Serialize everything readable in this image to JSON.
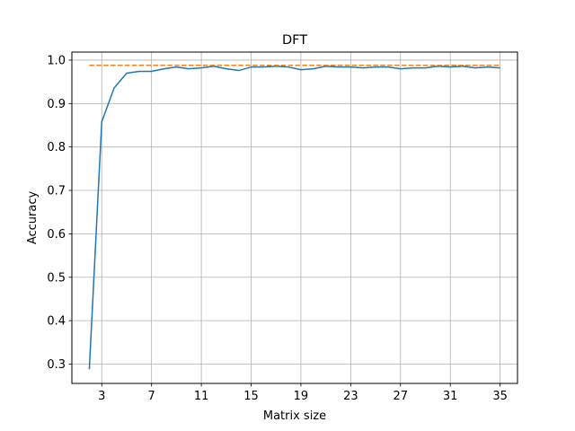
{
  "chart_data": {
    "type": "line",
    "title": "DFT",
    "xlabel": "Matrix size",
    "ylabel": "Accuracy",
    "xlim": [
      0.6,
      36.4
    ],
    "ylim": [
      0.2555,
      1.0185
    ],
    "xticks": [
      3,
      7,
      11,
      15,
      19,
      23,
      27,
      31,
      35
    ],
    "yticks": [
      0.3,
      0.4,
      0.5,
      0.6,
      0.7,
      0.8,
      0.9,
      1.0
    ],
    "ytick_labels": [
      "0.3",
      "0.4",
      "0.5",
      "0.6",
      "0.7",
      "0.8",
      "0.9",
      "1.0"
    ],
    "grid": true,
    "series": [
      {
        "color": "#1f77b4",
        "style": "solid",
        "x": [
          2,
          3,
          4,
          5,
          6,
          7,
          8,
          9,
          10,
          11,
          12,
          13,
          14,
          15,
          16,
          17,
          18,
          19,
          20,
          21,
          22,
          23,
          24,
          25,
          26,
          27,
          28,
          29,
          30,
          31,
          32,
          33,
          34,
          35
        ],
        "y": [
          0.288,
          0.858,
          0.936,
          0.97,
          0.974,
          0.974,
          0.98,
          0.984,
          0.98,
          0.982,
          0.986,
          0.98,
          0.976,
          0.984,
          0.984,
          0.986,
          0.984,
          0.978,
          0.98,
          0.986,
          0.984,
          0.984,
          0.982,
          0.984,
          0.984,
          0.98,
          0.982,
          0.982,
          0.986,
          0.984,
          0.986,
          0.982,
          0.984,
          0.982
        ]
      },
      {
        "color": "#ff7f0e",
        "style": "dashed",
        "x": [
          2,
          35
        ],
        "y": [
          0.988,
          0.988
        ]
      }
    ]
  }
}
